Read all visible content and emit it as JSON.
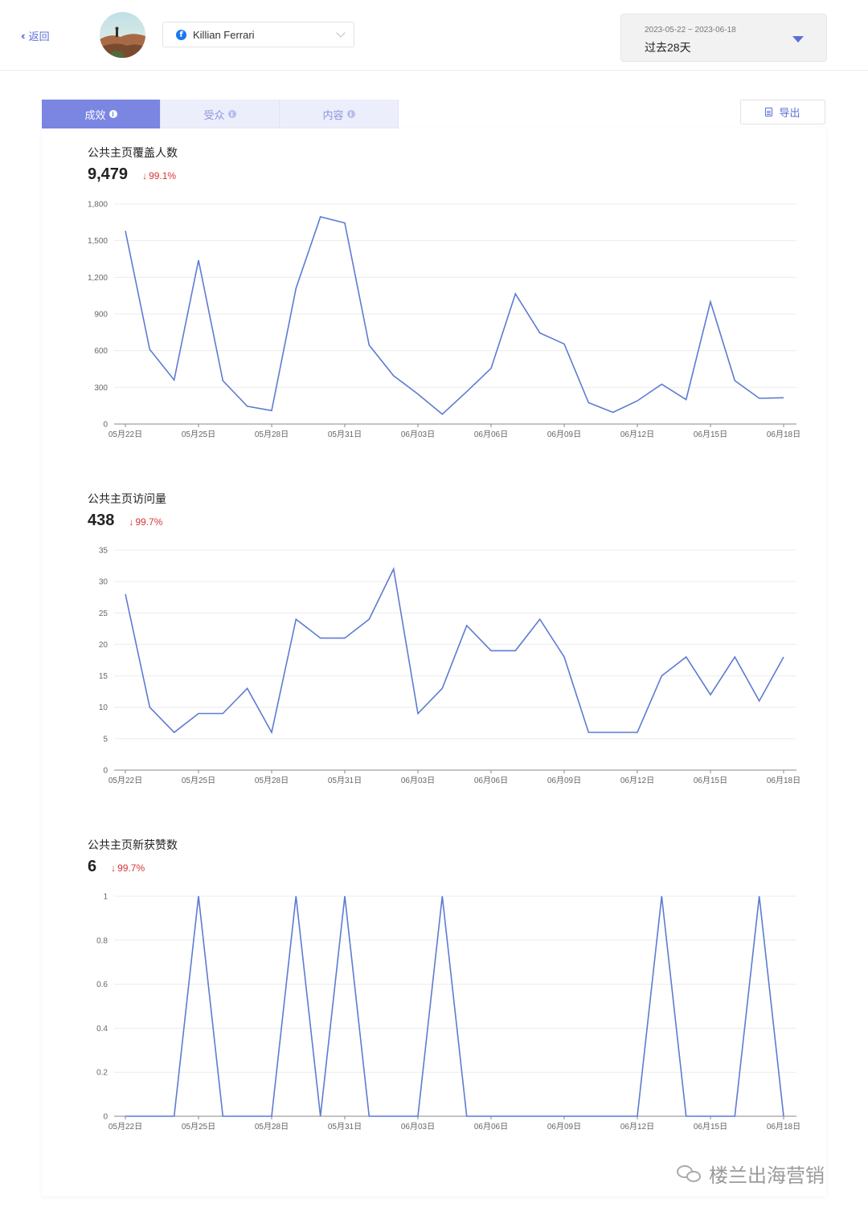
{
  "header": {
    "back_label": "返回",
    "account_name": "Killian Ferrari",
    "date_range": "2023-05-22 ~ 2023-06-18",
    "date_preset": "过去28天"
  },
  "tabs": [
    {
      "label": "成效",
      "active": true
    },
    {
      "label": "受众",
      "active": false
    },
    {
      "label": "内容",
      "active": false
    }
  ],
  "export_label": "导出",
  "colors": {
    "accent": "#7b86e3",
    "line": "#5d7bd1",
    "decline": "#d93434"
  },
  "metrics": [
    {
      "title": "公共主页覆盖人数",
      "value": "9,479",
      "change": "99.1%"
    },
    {
      "title": "公共主页访问量",
      "value": "438",
      "change": "99.7%"
    },
    {
      "title": "公共主页新获赞数",
      "value": "6",
      "change": "99.7%"
    }
  ],
  "watermark": "楼兰出海营销",
  "chart_data": [
    {
      "type": "line",
      "title": "公共主页覆盖人数",
      "x": [
        "05月22日",
        "05月23日",
        "05月24日",
        "05月25日",
        "05月26日",
        "05月27日",
        "05月28日",
        "05月29日",
        "05月30日",
        "05月31日",
        "06月01日",
        "06月02日",
        "06月03日",
        "06月04日",
        "06月05日",
        "06月06日",
        "06月07日",
        "06月08日",
        "06月09日",
        "06月10日",
        "06月11日",
        "06月12日",
        "06月13日",
        "06月14日",
        "06月15日",
        "06月16日",
        "06月17日",
        "06月18日"
      ],
      "xticks": [
        "05月22日",
        "05月25日",
        "05月28日",
        "05月31日",
        "06月03日",
        "06月06日",
        "06月09日",
        "06月12日",
        "06月15日",
        "06月18日"
      ],
      "yticks": [
        "0",
        "300",
        "600",
        "900",
        "1,200",
        "1,500",
        "1,800"
      ],
      "ylim": [
        0,
        1800
      ],
      "values": [
        1580,
        610,
        360,
        1340,
        355,
        145,
        110,
        1110,
        1695,
        1645,
        645,
        395,
        245,
        80,
        265,
        455,
        1065,
        745,
        655,
        175,
        95,
        190,
        325,
        200,
        1000,
        355,
        210,
        215
      ],
      "grid": true
    },
    {
      "type": "line",
      "title": "公共主页访问量",
      "x": [
        "05月22日",
        "05月23日",
        "05月24日",
        "05月25日",
        "05月26日",
        "05月27日",
        "05月28日",
        "05月29日",
        "05月30日",
        "05月31日",
        "06月01日",
        "06月02日",
        "06月03日",
        "06月04日",
        "06月05日",
        "06月06日",
        "06月07日",
        "06月08日",
        "06月09日",
        "06月10日",
        "06月11日",
        "06月12日",
        "06月13日",
        "06月14日",
        "06月15日",
        "06月16日",
        "06月17日",
        "06月18日"
      ],
      "xticks": [
        "05月22日",
        "05月25日",
        "05月28日",
        "05月31日",
        "06月03日",
        "06月06日",
        "06月09日",
        "06月12日",
        "06月15日",
        "06月18日"
      ],
      "yticks": [
        "0",
        "5",
        "10",
        "15",
        "20",
        "25",
        "30",
        "35"
      ],
      "ylim": [
        0,
        35
      ],
      "values": [
        28,
        10,
        6,
        9,
        9,
        13,
        6,
        24,
        21,
        21,
        24,
        32,
        9,
        13,
        23,
        19,
        19,
        24,
        18,
        6,
        6,
        6,
        15,
        18,
        12,
        18,
        11,
        18
      ],
      "grid": true
    },
    {
      "type": "line",
      "title": "公共主页新获赞数",
      "x": [
        "05月22日",
        "05月23日",
        "05月24日",
        "05月25日",
        "05月26日",
        "05月27日",
        "05月28日",
        "05月29日",
        "05月30日",
        "05月31日",
        "06月01日",
        "06月02日",
        "06月03日",
        "06月04日",
        "06月05日",
        "06月06日",
        "06月07日",
        "06月08日",
        "06月09日",
        "06月10日",
        "06月11日",
        "06月12日",
        "06月13日",
        "06月14日",
        "06月15日",
        "06月16日",
        "06月17日",
        "06月18日"
      ],
      "xticks": [
        "05月22日",
        "05月25日",
        "05月28日",
        "05月31日",
        "06月03日",
        "06月06日",
        "06月09日",
        "06月12日",
        "06月15日",
        "06月18日"
      ],
      "yticks": [
        "0",
        "0.2",
        "0.4",
        "0.6",
        "0.8",
        "1"
      ],
      "ylim": [
        0,
        1
      ],
      "values": [
        0,
        0,
        0,
        1,
        0,
        0,
        0,
        1,
        0,
        1,
        0,
        0,
        0,
        1,
        0,
        0,
        0,
        0,
        0,
        0,
        0,
        0,
        1,
        0,
        0,
        0,
        1,
        0
      ],
      "grid": true
    }
  ]
}
